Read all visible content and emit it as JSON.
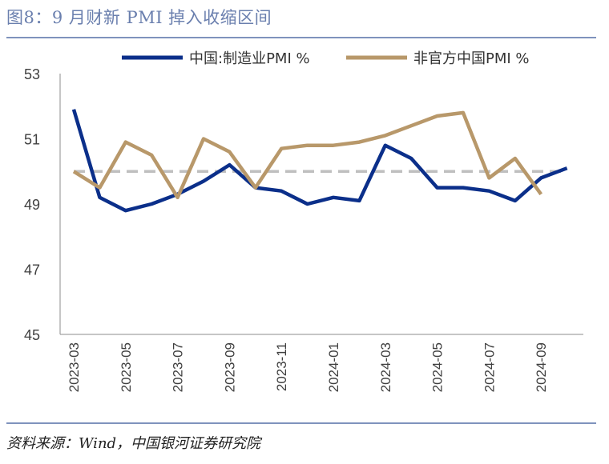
{
  "figure": {
    "title": "图8：9 月财新 PMI 掉入收缩区间",
    "source": "资料来源：Wind，中国银河证券研究院"
  },
  "chart_data": {
    "type": "line",
    "categories": [
      "2023-03",
      "2023-04",
      "2023-05",
      "2023-06",
      "2023-07",
      "2023-08",
      "2023-09",
      "2023-10",
      "2023-11",
      "2023-12",
      "2024-01",
      "2024-02",
      "2024-03",
      "2024-04",
      "2024-05",
      "2024-06",
      "2024-07",
      "2024-08",
      "2024-09",
      "2024-10"
    ],
    "tick_labels": [
      "2023-03",
      "2023-05",
      "2023-07",
      "2023-09",
      "2023-11",
      "2024-01",
      "2024-03",
      "2024-05",
      "2024-07",
      "2024-09"
    ],
    "y_ticks": [
      45,
      47,
      49,
      51,
      53
    ],
    "ylim": [
      45,
      53
    ],
    "reference_line": 50,
    "legend_position": "top",
    "grid": false,
    "series": [
      {
        "name": "中国:制造业PMI %",
        "color": "#0b2f8a",
        "values": [
          51.9,
          49.2,
          48.8,
          49.0,
          49.3,
          49.7,
          50.2,
          49.5,
          49.4,
          49.0,
          49.2,
          49.1,
          50.8,
          50.4,
          49.5,
          49.5,
          49.4,
          49.1,
          49.8,
          50.1
        ]
      },
      {
        "name": "非官方中国PMI %",
        "color": "#b8986a",
        "values": [
          50.0,
          49.5,
          50.9,
          50.5,
          49.2,
          51.0,
          50.6,
          49.5,
          50.7,
          50.8,
          50.8,
          50.9,
          51.1,
          51.4,
          51.7,
          51.8,
          49.8,
          50.4,
          49.3,
          null
        ]
      }
    ],
    "reference_color": "#bfbfbf",
    "axis_color": "#8c8c8c"
  }
}
